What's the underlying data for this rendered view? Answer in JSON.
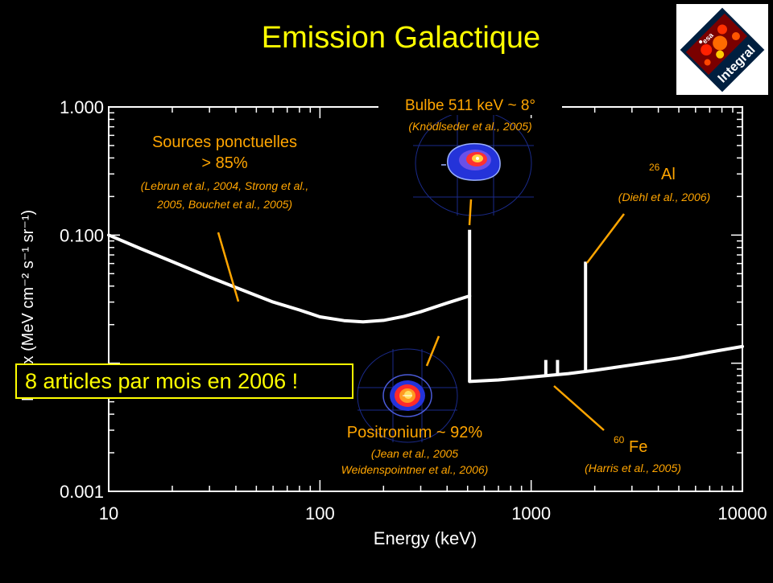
{
  "slide": {
    "title": "Emission Galactique",
    "banner": "8 articles par mois en 2006 !",
    "logo": {
      "agency": "esa",
      "mission": "Integral"
    }
  },
  "colors": {
    "background": "#000000",
    "title": "#ffff00",
    "annotation": "#ffa500",
    "curve": "#ffffff"
  },
  "chart_data": {
    "type": "line",
    "title": "",
    "xlabel": "Energy (keV)",
    "ylabel": "E² flux (MeV cm⁻² s⁻¹ sr⁻¹)",
    "xscale": "log",
    "yscale": "log",
    "xlim": [
      10,
      10000
    ],
    "ylim": [
      0.001,
      1.0
    ],
    "xticks": [
      10,
      100,
      1000,
      10000
    ],
    "xtick_labels": [
      "10",
      "100",
      "1000",
      "10000"
    ],
    "yticks": [
      0.001,
      0.1,
      1.0
    ],
    "ytick_labels": [
      "0.001",
      "0.100",
      "1.000"
    ],
    "grid": false,
    "series": [
      {
        "x": [
          10,
          14,
          20,
          30,
          40,
          60,
          80,
          100,
          130,
          160,
          200,
          250,
          300,
          400,
          511
        ],
        "values": [
          0.1,
          0.079,
          0.062,
          0.047,
          0.039,
          0.03,
          0.026,
          0.023,
          0.0215,
          0.021,
          0.0216,
          0.0232,
          0.0252,
          0.0295,
          0.0335
        ]
      },
      {
        "x": [
          511,
          700,
          1000,
          1500,
          2000,
          3000,
          5000,
          7000,
          10000
        ],
        "values": [
          0.0072,
          0.0074,
          0.0078,
          0.0083,
          0.0088,
          0.0097,
          0.011,
          0.0122,
          0.0135
        ]
      }
    ],
    "lines": [
      {
        "energy": 511,
        "base": 0.0072,
        "peak": 0.11
      },
      {
        "energy": 1173,
        "base": 0.008,
        "peak": 0.0106
      },
      {
        "energy": 1333,
        "base": 0.0082,
        "peak": 0.0106
      },
      {
        "energy": 1809,
        "base": 0.0087,
        "peak": 0.062
      }
    ],
    "annotations": [
      {
        "label": "Bulbe 511 keV ~ 8°",
        "ref": "(Knödlseder et al., 2005)"
      },
      {
        "label": "Sources ponctuelles",
        "label2": "> 85%",
        "ref": "(Lebrun et al., 2004, Strong et al.,",
        "ref2": "2005, Bouchet et al., 2005)"
      },
      {
        "label": "Al",
        "sup": "26",
        "ref": "(Diehl et al., 2006)"
      },
      {
        "label": "Positronium ~ 92%",
        "ref": "(Jean et al., 2005",
        "ref2": "Weidenspointner et al., 2006)"
      },
      {
        "label": "Fe",
        "sup": "60",
        "ref": "(Harris et al., 2005)"
      }
    ]
  }
}
